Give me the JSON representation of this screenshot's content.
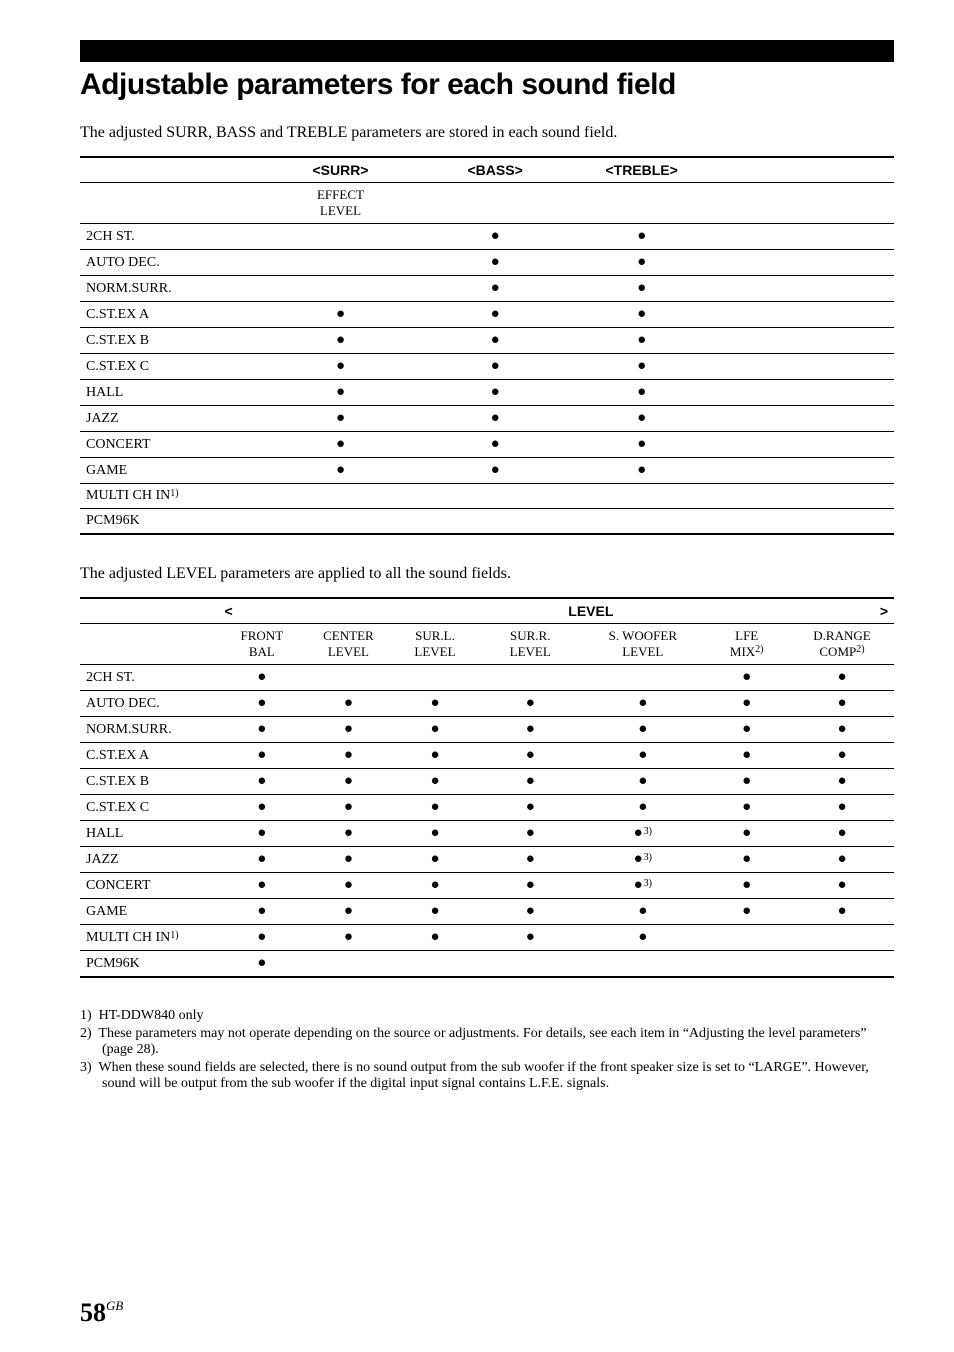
{
  "title": "Adjustable parameters for each sound field",
  "intro1": "The adjusted SURR, BASS and TREBLE parameters are stored in each sound field.",
  "intro2": "The adjusted LEVEL parameters are applied to all the sound fields.",
  "table1": {
    "headers": {
      "c2": "<SURR>",
      "c3": "<BASS>",
      "c4": "<TREBLE>"
    },
    "sub": {
      "effect": "EFFECT",
      "level": "LEVEL"
    },
    "rows": [
      {
        "label": "2CH ST.",
        "sup": "",
        "c2": "",
        "c3": "dot",
        "c4": "dot"
      },
      {
        "label": "AUTO DEC.",
        "sup": "",
        "c2": "",
        "c3": "dot",
        "c4": "dot"
      },
      {
        "label": "NORM.SURR.",
        "sup": "",
        "c2": "",
        "c3": "dot",
        "c4": "dot"
      },
      {
        "label": "C.ST.EX A",
        "sup": "",
        "c2": "dot",
        "c3": "dot",
        "c4": "dot"
      },
      {
        "label": "C.ST.EX B",
        "sup": "",
        "c2": "dot",
        "c3": "dot",
        "c4": "dot"
      },
      {
        "label": "C.ST.EX C",
        "sup": "",
        "c2": "dot",
        "c3": "dot",
        "c4": "dot"
      },
      {
        "label": "HALL",
        "sup": "",
        "c2": "dot",
        "c3": "dot",
        "c4": "dot"
      },
      {
        "label": "JAZZ",
        "sup": "",
        "c2": "dot",
        "c3": "dot",
        "c4": "dot"
      },
      {
        "label": "CONCERT",
        "sup": "",
        "c2": "dot",
        "c3": "dot",
        "c4": "dot"
      },
      {
        "label": "GAME",
        "sup": "",
        "c2": "dot",
        "c3": "dot",
        "c4": "dot"
      },
      {
        "label": "MULTI CH IN",
        "sup": "1)",
        "c2": "",
        "c3": "",
        "c4": ""
      },
      {
        "label": "PCM96K",
        "sup": "",
        "c2": "",
        "c3": "",
        "c4": ""
      }
    ]
  },
  "table2": {
    "level_label": "LEVEL",
    "sub": [
      {
        "l1": "FRONT",
        "l2": "BAL"
      },
      {
        "l1": "CENTER",
        "l2": "LEVEL"
      },
      {
        "l1": "SUR.L.",
        "l2": "LEVEL"
      },
      {
        "l1": "SUR.R.",
        "l2": "LEVEL"
      },
      {
        "l1": "S. WOOFER",
        "l2": "LEVEL"
      },
      {
        "l1": "LFE",
        "l2": "MIX",
        "l2sup": "2)"
      },
      {
        "l1": "D.RANGE",
        "l2": "COMP",
        "l2sup": "2)"
      }
    ],
    "rows": [
      {
        "label": "2CH ST.",
        "sup": "",
        "cells": [
          "dot",
          "",
          "",
          "",
          "",
          "dot",
          "dot"
        ]
      },
      {
        "label": "AUTO DEC.",
        "sup": "",
        "cells": [
          "dot",
          "dot",
          "dot",
          "dot",
          "dot",
          "dot",
          "dot"
        ]
      },
      {
        "label": "NORM.SURR.",
        "sup": "",
        "cells": [
          "dot",
          "dot",
          "dot",
          "dot",
          "dot",
          "dot",
          "dot"
        ]
      },
      {
        "label": "C.ST.EX A",
        "sup": "",
        "cells": [
          "dot",
          "dot",
          "dot",
          "dot",
          "dot",
          "dot",
          "dot"
        ]
      },
      {
        "label": "C.ST.EX B",
        "sup": "",
        "cells": [
          "dot",
          "dot",
          "dot",
          "dot",
          "dot",
          "dot",
          "dot"
        ]
      },
      {
        "label": "C.ST.EX C",
        "sup": "",
        "cells": [
          "dot",
          "dot",
          "dot",
          "dot",
          "dot",
          "dot",
          "dot"
        ]
      },
      {
        "label": "HALL",
        "sup": "",
        "cells": [
          "dot",
          "dot",
          "dot",
          "dot",
          "dot3",
          "dot",
          "dot"
        ]
      },
      {
        "label": "JAZZ",
        "sup": "",
        "cells": [
          "dot",
          "dot",
          "dot",
          "dot",
          "dot3",
          "dot",
          "dot"
        ]
      },
      {
        "label": "CONCERT",
        "sup": "",
        "cells": [
          "dot",
          "dot",
          "dot",
          "dot",
          "dot3",
          "dot",
          "dot"
        ]
      },
      {
        "label": "GAME",
        "sup": "",
        "cells": [
          "dot",
          "dot",
          "dot",
          "dot",
          "dot",
          "dot",
          "dot"
        ]
      },
      {
        "label": "MULTI CH IN",
        "sup": "1)",
        "cells": [
          "dot",
          "dot",
          "dot",
          "dot",
          "dot",
          "",
          ""
        ]
      },
      {
        "label": "PCM96K",
        "sup": "",
        "cells": [
          "dot",
          "",
          "",
          "",
          "",
          "",
          ""
        ]
      }
    ]
  },
  "footnotes": [
    "1)  HT-DDW840 only",
    "2)  These parameters may not operate depending on the source or adjustments. For details, see each item in “Adjusting the level parameters” (page 28).",
    "3)  When these sound fields are selected, there is no sound output from the sub woofer if the front speaker size is set to “LARGE”. However, sound will be output from the sub woofer if the digital input signal contains L.F.E. signals."
  ],
  "page_number": "58",
  "page_suffix": "GB"
}
